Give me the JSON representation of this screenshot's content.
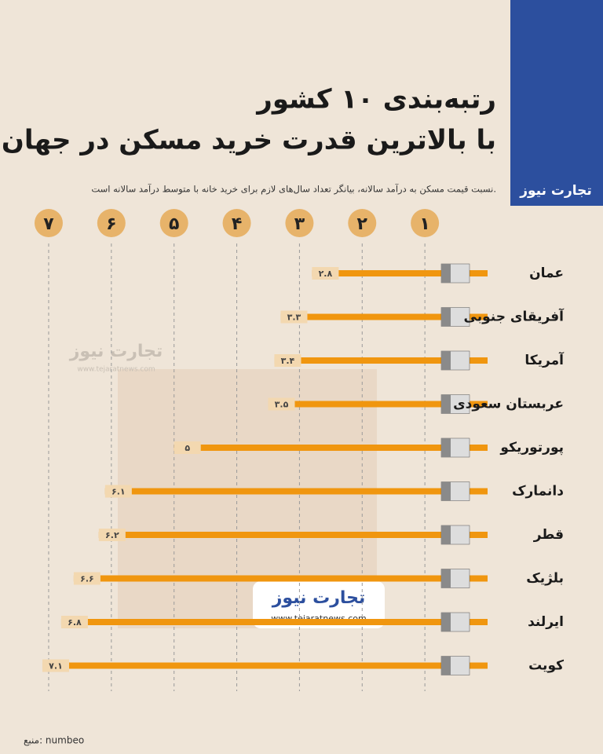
{
  "chart_data": {
    "type": "bar",
    "orientation": "horizontal",
    "title": [
      "رتبه‌بندی ۱۰ کشور",
      "با بالاترین قدرت خرید مسکن در جهان"
    ],
    "subtitle": "نسبت قیمت مسکن به درآمد سالانه، بیانگر تعداد سال‌های لازم برای خرید خانه با متوسط درآمد سالانه است.",
    "categories": [
      "عمان",
      "آفریقای جنوبی",
      "آمریکا",
      "عربستان سعودی",
      "پورتوریکو",
      "دانمارک",
      "قطر",
      "بلژیک",
      "ایرلند",
      "کویت"
    ],
    "values": [
      2.8,
      3.3,
      3.4,
      3.5,
      5,
      6.1,
      6.2,
      6.6,
      6.8,
      7.1
    ],
    "value_labels": [
      "۲.۸",
      "۳.۳",
      "۳.۴",
      "۳.۵",
      "۵",
      "۶.۱",
      "۶.۲",
      "۶.۶",
      "۶.۸",
      "۷.۱"
    ],
    "color": "#f0960f",
    "xlim": [
      0,
      7.2
    ],
    "xticks": [
      {
        "value": 1,
        "label": "۱"
      },
      {
        "value": 2,
        "label": "۲"
      },
      {
        "value": 3,
        "label": "۳"
      },
      {
        "value": 4,
        "label": "۴"
      },
      {
        "value": 5,
        "label": "۵"
      },
      {
        "value": 6,
        "label": "۶"
      },
      {
        "value": 7,
        "label": "۷"
      }
    ],
    "grid": true,
    "source": "منبع: numbeo",
    "logo": "تجارت نیوز",
    "website": "www.tejaratnews.com"
  }
}
